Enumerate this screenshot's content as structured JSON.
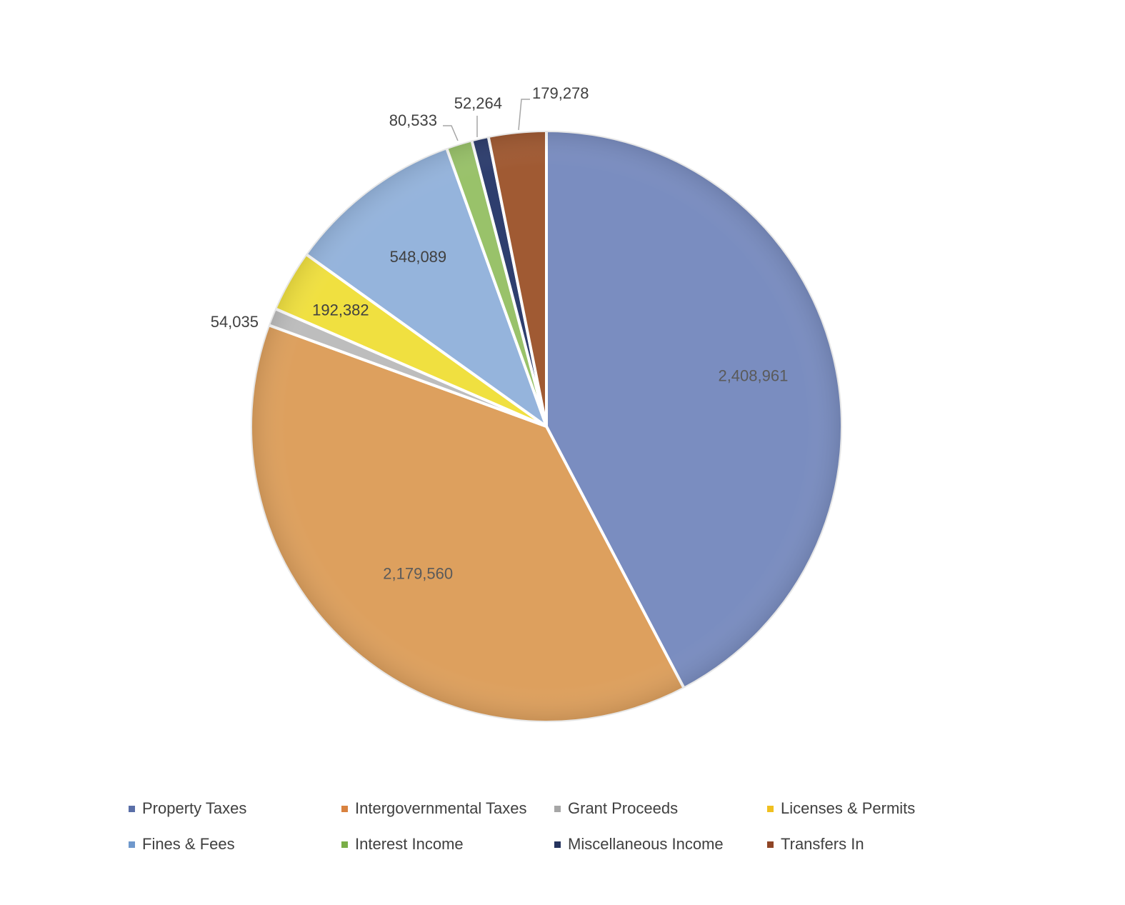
{
  "chart_data": {
    "type": "pie",
    "title": "",
    "start_angle_deg": 0,
    "direction": "clockwise",
    "slices": [
      {
        "label": "Property Taxes",
        "value": 2408961,
        "value_label": "2,408,961",
        "color": "#7A8DC0",
        "label_position": "inside",
        "label_color": "#5a5a5a"
      },
      {
        "label": "Intergovernmental Taxes",
        "value": 2179560,
        "value_label": "2,179,560",
        "color": "#DDA05E",
        "label_position": "inside",
        "label_color": "#5a5a5a"
      },
      {
        "label": "Grant Proceeds",
        "value": 54035,
        "value_label": "54,035",
        "color": "#BDBDBD",
        "label_position": "outside",
        "label_color": "#404040"
      },
      {
        "label": "Licenses & Permits",
        "value": 192382,
        "value_label": "192,382",
        "color": "#F0E040",
        "label_position": "inside",
        "label_color": "#404040"
      },
      {
        "label": "Fines & Fees",
        "value": 548089,
        "value_label": "548,089",
        "color": "#95B4DC",
        "label_position": "inside",
        "label_color": "#404040"
      },
      {
        "label": "Interest Income",
        "value": 80533,
        "value_label": "80,533",
        "color": "#99C26A",
        "label_position": "outside",
        "label_color": "#404040"
      },
      {
        "label": "Miscellaneous Income",
        "value": 52264,
        "value_label": "52,264",
        "color": "#2E3E6E",
        "label_position": "outside",
        "label_color": "#404040"
      },
      {
        "label": "Transfers In",
        "value": 179278,
        "value_label": "179,278",
        "color": "#A05A33",
        "label_position": "outside",
        "label_color": "#404040"
      }
    ],
    "legend": {
      "position": "bottom",
      "entries": [
        {
          "label": "Property Taxes",
          "color": "#5A6FA8"
        },
        {
          "label": "Intergovernmental Taxes",
          "color": "#D9823F"
        },
        {
          "label": "Grant Proceeds",
          "color": "#A6A6A6"
        },
        {
          "label": "Licenses & Permits",
          "color": "#F0C020"
        },
        {
          "label": "Fines & Fees",
          "color": "#6F98CC"
        },
        {
          "label": "Interest Income",
          "color": "#7AAE48"
        },
        {
          "label": "Miscellaneous Income",
          "color": "#26345E"
        },
        {
          "label": "Transfers In",
          "color": "#8F4526"
        }
      ]
    }
  }
}
